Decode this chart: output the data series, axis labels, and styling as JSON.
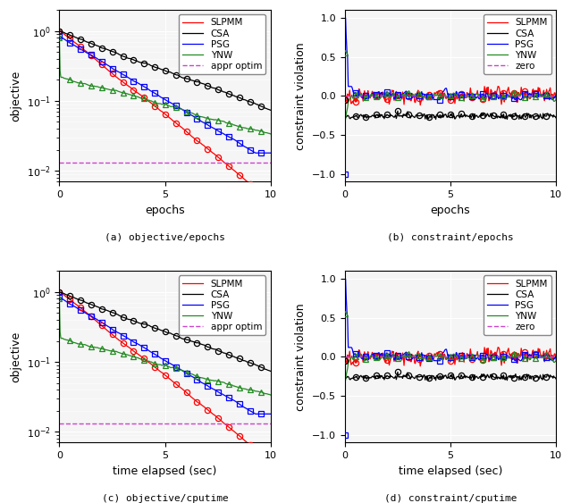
{
  "fig_width": 6.4,
  "fig_height": 5.63,
  "colors": {
    "SLPMM": "#FF0000",
    "CSA": "#000000",
    "PSG": "#0000FF",
    "YNW": "#228B22",
    "appr_optim": "#CC44CC",
    "zero": "#CC44CC"
  },
  "markers": {
    "SLPMM": "o",
    "CSA": "o",
    "PSG": "s",
    "YNW": "^"
  },
  "appr_optim_value": 0.013,
  "xlim_epochs": [
    0,
    10
  ],
  "xlim_time": [
    0,
    10
  ],
  "ylim_obj": [
    0.007,
    2.0
  ],
  "ylim_constr": [
    -1.1,
    1.1
  ],
  "yticks_obj": [
    0.01,
    0.1,
    1.0
  ],
  "yticks_constr": [
    -1.0,
    -0.5,
    0.0,
    0.5,
    1.0
  ],
  "xticks_10": [
    0,
    5,
    10
  ],
  "background_color": "#f5f5f5"
}
